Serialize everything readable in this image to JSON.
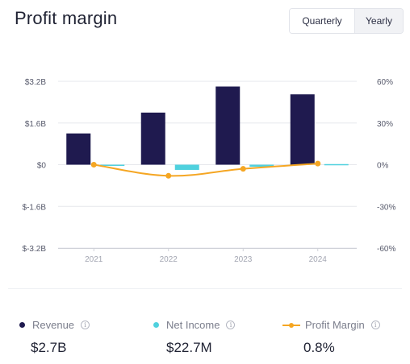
{
  "title": "Profit margin",
  "period_toggle": {
    "options": [
      "Quarterly",
      "Yearly"
    ],
    "selected": "Yearly"
  },
  "colors": {
    "revenue": "#1f1a4f",
    "net_income": "#4fd1de",
    "profit_margin": "#f5a623",
    "grid": "#e6e7ec"
  },
  "chart_data": {
    "type": "bar",
    "categories": [
      "2021",
      "2022",
      "2023",
      "2024"
    ],
    "series": [
      {
        "name": "Revenue",
        "axis": "left",
        "kind": "bar",
        "values": [
          1.2,
          2.0,
          3.0,
          2.7
        ]
      },
      {
        "name": "Net Income",
        "axis": "left",
        "kind": "bar",
        "values": [
          0.0,
          -0.2,
          -0.08,
          0.0227
        ]
      },
      {
        "name": "Profit Margin",
        "axis": "right",
        "kind": "line",
        "values": [
          0.0,
          -8.0,
          -3.0,
          0.8
        ]
      }
    ],
    "left_axis": {
      "ylim": [
        -3.2,
        3.2
      ],
      "ticks": [
        "$3.2B",
        "$1.6B",
        "$0",
        "$-1.6B",
        "$-3.2B"
      ],
      "tick_values": [
        3.2,
        1.6,
        0,
        -1.6,
        -3.2
      ]
    },
    "right_axis": {
      "ylim": [
        -60,
        60
      ],
      "ticks": [
        "60%",
        "30%",
        "0%",
        "-30%",
        "-60%"
      ],
      "tick_values": [
        60,
        30,
        0,
        -30,
        -60
      ]
    },
    "grid": true
  },
  "legend": [
    {
      "label": "Revenue",
      "value": "$2.7B",
      "icon": "info-icon"
    },
    {
      "label": "Net Income",
      "value": "$22.7M",
      "icon": "info-icon"
    },
    {
      "label": "Profit Margin",
      "value": "0.8%",
      "icon": "info-icon"
    }
  ]
}
